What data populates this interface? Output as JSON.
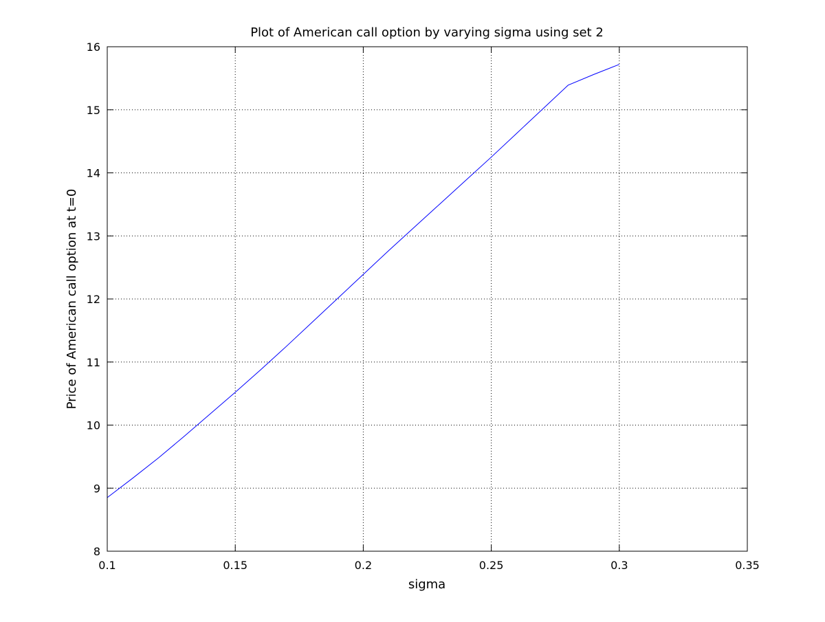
{
  "chart_data": {
    "type": "line",
    "title": "Plot of American call option by varying sigma using set 2",
    "xlabel": "sigma",
    "ylabel": "Price of American call option at t=0",
    "xlim": [
      0.1,
      0.35
    ],
    "ylim": [
      8,
      16
    ],
    "x_ticks": [
      "0.1",
      "0.15",
      "0.2",
      "0.25",
      "0.3",
      "0.35"
    ],
    "y_ticks": [
      "8",
      "9",
      "10",
      "11",
      "12",
      "13",
      "14",
      "15",
      "16"
    ],
    "grid": true,
    "grid_style": "dotted",
    "series": [
      {
        "color": "#0000ff",
        "x": [
          0.1,
          0.11,
          0.12,
          0.13,
          0.14,
          0.15,
          0.16,
          0.17,
          0.18,
          0.19,
          0.2,
          0.21,
          0.22,
          0.23,
          0.24,
          0.25,
          0.26,
          0.27,
          0.28,
          0.29,
          0.3
        ],
        "values": [
          8.85,
          9.16,
          9.48,
          9.82,
          10.17,
          10.52,
          10.88,
          11.25,
          11.63,
          12.01,
          12.39,
          12.77,
          13.14,
          13.51,
          13.88,
          14.25,
          14.63,
          15.01,
          15.39,
          15.56,
          15.72
        ]
      }
    ]
  }
}
